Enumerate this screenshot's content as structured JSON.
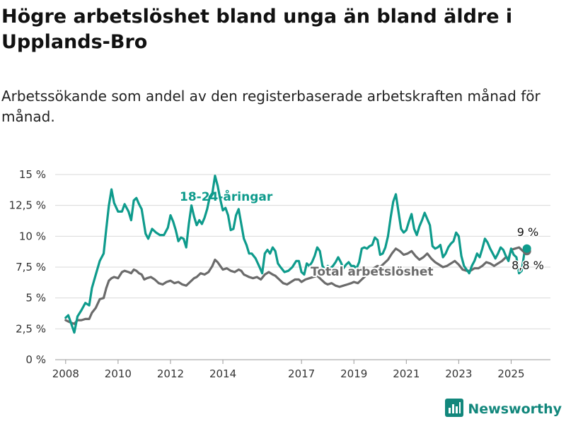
{
  "title": "Högre arbetslöshet bland unga än bland äldre i Upplands-Bro",
  "subtitle": "Arbetssökande som andel av den registerbaserade arbetskraften månad för månad.",
  "brand": {
    "name": "Newsworthy",
    "icon": "bar-chart-logo-icon"
  },
  "colors": {
    "young": "#0e9b8c",
    "total": "#6b6b6b",
    "grid": "#d9d9d9",
    "brand": "#12877c"
  },
  "chart_data": {
    "type": "line",
    "ylim": [
      0,
      15
    ],
    "y_ticks": [
      0,
      2.5,
      5,
      7.5,
      10,
      12.5,
      15
    ],
    "y_tick_labels": [
      "0 %",
      "2,5 %",
      "5 %",
      "7,5 %",
      "10 %",
      "12,5 %",
      "15 %"
    ],
    "xlim": [
      2007.6,
      2026.5
    ],
    "x_ticks": [
      2008,
      2010,
      2012,
      2014,
      2017,
      2019,
      2021,
      2023,
      2025
    ],
    "x_tick_labels": [
      "2008",
      "2010",
      "2012",
      "2014",
      "2017",
      "2019",
      "2021",
      "2023",
      "2025"
    ],
    "grid": "horizontal",
    "series": [
      {
        "name": "18-24-åringar",
        "color": "#0e9b8c",
        "end_label": "9 %",
        "points": [
          [
            2008.0,
            3.4
          ],
          [
            2008.1,
            3.6
          ],
          [
            2008.2,
            3.0
          ],
          [
            2008.33,
            2.2
          ],
          [
            2008.45,
            3.5
          ],
          [
            2008.6,
            4.0
          ],
          [
            2008.75,
            4.6
          ],
          [
            2008.9,
            4.4
          ],
          [
            2009.0,
            5.8
          ],
          [
            2009.15,
            6.9
          ],
          [
            2009.3,
            8.0
          ],
          [
            2009.45,
            8.6
          ],
          [
            2009.55,
            10.6
          ],
          [
            2009.65,
            12.5
          ],
          [
            2009.75,
            13.8
          ],
          [
            2009.85,
            12.7
          ],
          [
            2010.0,
            12.0
          ],
          [
            2010.15,
            12.0
          ],
          [
            2010.25,
            12.6
          ],
          [
            2010.4,
            12.0
          ],
          [
            2010.5,
            11.3
          ],
          [
            2010.6,
            12.9
          ],
          [
            2010.7,
            13.1
          ],
          [
            2010.8,
            12.6
          ],
          [
            2010.9,
            12.2
          ],
          [
            2011.05,
            10.2
          ],
          [
            2011.15,
            9.8
          ],
          [
            2011.3,
            10.6
          ],
          [
            2011.45,
            10.3
          ],
          [
            2011.6,
            10.1
          ],
          [
            2011.75,
            10.1
          ],
          [
            2011.9,
            10.7
          ],
          [
            2012.0,
            11.7
          ],
          [
            2012.1,
            11.2
          ],
          [
            2012.2,
            10.5
          ],
          [
            2012.3,
            9.6
          ],
          [
            2012.4,
            9.9
          ],
          [
            2012.5,
            9.8
          ],
          [
            2012.6,
            9.1
          ],
          [
            2012.7,
            11.0
          ],
          [
            2012.8,
            12.5
          ],
          [
            2012.9,
            11.6
          ],
          [
            2013.0,
            10.9
          ],
          [
            2013.1,
            11.3
          ],
          [
            2013.2,
            11.0
          ],
          [
            2013.3,
            11.5
          ],
          [
            2013.4,
            12.2
          ],
          [
            2013.5,
            13.2
          ],
          [
            2013.6,
            13.5
          ],
          [
            2013.7,
            14.9
          ],
          [
            2013.8,
            14.1
          ],
          [
            2013.9,
            13.0
          ],
          [
            2014.0,
            12.1
          ],
          [
            2014.1,
            12.3
          ],
          [
            2014.2,
            11.7
          ],
          [
            2014.3,
            10.5
          ],
          [
            2014.4,
            10.6
          ],
          [
            2014.5,
            11.7
          ],
          [
            2014.6,
            12.2
          ],
          [
            2014.7,
            11.0
          ],
          [
            2014.8,
            9.8
          ],
          [
            2014.9,
            9.3
          ],
          [
            2015.0,
            8.6
          ],
          [
            2015.1,
            8.6
          ],
          [
            2015.25,
            8.2
          ],
          [
            2015.4,
            7.5
          ],
          [
            2015.5,
            7.0
          ],
          [
            2015.6,
            8.6
          ],
          [
            2015.7,
            8.9
          ],
          [
            2015.8,
            8.6
          ],
          [
            2015.9,
            9.1
          ],
          [
            2016.0,
            8.8
          ],
          [
            2016.1,
            7.8
          ],
          [
            2016.2,
            7.5
          ],
          [
            2016.35,
            7.1
          ],
          [
            2016.5,
            7.2
          ],
          [
            2016.65,
            7.5
          ],
          [
            2016.8,
            8.0
          ],
          [
            2016.9,
            8.0
          ],
          [
            2017.0,
            7.1
          ],
          [
            2017.1,
            6.9
          ],
          [
            2017.2,
            7.8
          ],
          [
            2017.3,
            7.6
          ],
          [
            2017.4,
            7.9
          ],
          [
            2017.5,
            8.4
          ],
          [
            2017.6,
            9.1
          ],
          [
            2017.7,
            8.8
          ],
          [
            2017.8,
            7.6
          ],
          [
            2017.9,
            7.3
          ],
          [
            2018.0,
            7.6
          ],
          [
            2018.1,
            7.4
          ],
          [
            2018.2,
            7.6
          ],
          [
            2018.3,
            7.9
          ],
          [
            2018.4,
            8.3
          ],
          [
            2018.5,
            7.9
          ],
          [
            2018.6,
            7.4
          ],
          [
            2018.7,
            7.7
          ],
          [
            2018.8,
            7.9
          ],
          [
            2018.9,
            7.6
          ],
          [
            2019.0,
            7.6
          ],
          [
            2019.1,
            7.4
          ],
          [
            2019.2,
            7.9
          ],
          [
            2019.3,
            9.0
          ],
          [
            2019.4,
            9.1
          ],
          [
            2019.5,
            9.0
          ],
          [
            2019.6,
            9.2
          ],
          [
            2019.7,
            9.3
          ],
          [
            2019.8,
            9.9
          ],
          [
            2019.9,
            9.7
          ],
          [
            2020.0,
            8.5
          ],
          [
            2020.1,
            8.6
          ],
          [
            2020.2,
            9.1
          ],
          [
            2020.3,
            10.0
          ],
          [
            2020.4,
            11.5
          ],
          [
            2020.5,
            12.8
          ],
          [
            2020.6,
            13.4
          ],
          [
            2020.7,
            12.0
          ],
          [
            2020.8,
            10.6
          ],
          [
            2020.9,
            10.3
          ],
          [
            2021.0,
            10.5
          ],
          [
            2021.1,
            11.2
          ],
          [
            2021.2,
            11.8
          ],
          [
            2021.3,
            10.6
          ],
          [
            2021.4,
            10.1
          ],
          [
            2021.5,
            10.8
          ],
          [
            2021.6,
            11.3
          ],
          [
            2021.7,
            11.9
          ],
          [
            2021.8,
            11.4
          ],
          [
            2021.9,
            10.9
          ],
          [
            2022.0,
            9.2
          ],
          [
            2022.1,
            9.0
          ],
          [
            2022.2,
            9.1
          ],
          [
            2022.3,
            9.3
          ],
          [
            2022.4,
            8.3
          ],
          [
            2022.5,
            8.6
          ],
          [
            2022.6,
            9.1
          ],
          [
            2022.7,
            9.4
          ],
          [
            2022.8,
            9.6
          ],
          [
            2022.9,
            10.3
          ],
          [
            2023.0,
            10.0
          ],
          [
            2023.1,
            8.4
          ],
          [
            2023.2,
            7.6
          ],
          [
            2023.3,
            7.3
          ],
          [
            2023.4,
            7.0
          ],
          [
            2023.5,
            7.6
          ],
          [
            2023.6,
            8.0
          ],
          [
            2023.7,
            8.6
          ],
          [
            2023.8,
            8.3
          ],
          [
            2023.9,
            9.0
          ],
          [
            2024.0,
            9.8
          ],
          [
            2024.1,
            9.5
          ],
          [
            2024.2,
            9.0
          ],
          [
            2024.3,
            8.6
          ],
          [
            2024.4,
            8.2
          ],
          [
            2024.5,
            8.6
          ],
          [
            2024.6,
            9.1
          ],
          [
            2024.7,
            8.9
          ],
          [
            2024.8,
            8.4
          ],
          [
            2024.9,
            8.0
          ],
          [
            2025.0,
            9.0
          ],
          [
            2025.1,
            8.5
          ],
          [
            2025.2,
            8.3
          ],
          [
            2025.3,
            7.0
          ],
          [
            2025.4,
            7.2
          ],
          [
            2025.5,
            8.6
          ],
          [
            2025.6,
            9.0
          ]
        ]
      },
      {
        "name": "Total arbetslöshet",
        "color": "#6b6b6b",
        "end_label": "8,8 %",
        "points": [
          [
            2008.0,
            3.2
          ],
          [
            2008.1,
            3.1
          ],
          [
            2008.2,
            3.0
          ],
          [
            2008.33,
            2.9
          ],
          [
            2008.45,
            3.2
          ],
          [
            2008.6,
            3.2
          ],
          [
            2008.75,
            3.3
          ],
          [
            2008.9,
            3.3
          ],
          [
            2009.0,
            3.8
          ],
          [
            2009.15,
            4.2
          ],
          [
            2009.3,
            4.9
          ],
          [
            2009.45,
            5.0
          ],
          [
            2009.55,
            5.8
          ],
          [
            2009.65,
            6.4
          ],
          [
            2009.75,
            6.6
          ],
          [
            2009.85,
            6.7
          ],
          [
            2010.0,
            6.6
          ],
          [
            2010.15,
            7.1
          ],
          [
            2010.25,
            7.2
          ],
          [
            2010.4,
            7.1
          ],
          [
            2010.5,
            7.0
          ],
          [
            2010.6,
            7.3
          ],
          [
            2010.7,
            7.2
          ],
          [
            2010.8,
            7.0
          ],
          [
            2010.9,
            6.9
          ],
          [
            2011.0,
            6.5
          ],
          [
            2011.1,
            6.6
          ],
          [
            2011.25,
            6.7
          ],
          [
            2011.4,
            6.5
          ],
          [
            2011.55,
            6.2
          ],
          [
            2011.7,
            6.1
          ],
          [
            2011.85,
            6.3
          ],
          [
            2012.0,
            6.4
          ],
          [
            2012.15,
            6.2
          ],
          [
            2012.3,
            6.3
          ],
          [
            2012.45,
            6.1
          ],
          [
            2012.6,
            6.0
          ],
          [
            2012.75,
            6.3
          ],
          [
            2012.9,
            6.6
          ],
          [
            2013.0,
            6.7
          ],
          [
            2013.15,
            7.0
          ],
          [
            2013.3,
            6.9
          ],
          [
            2013.45,
            7.1
          ],
          [
            2013.6,
            7.6
          ],
          [
            2013.7,
            8.1
          ],
          [
            2013.8,
            7.9
          ],
          [
            2013.9,
            7.6
          ],
          [
            2014.0,
            7.3
          ],
          [
            2014.15,
            7.4
          ],
          [
            2014.3,
            7.2
          ],
          [
            2014.45,
            7.1
          ],
          [
            2014.6,
            7.3
          ],
          [
            2014.7,
            7.2
          ],
          [
            2014.8,
            6.9
          ],
          [
            2014.9,
            6.8
          ],
          [
            2015.0,
            6.7
          ],
          [
            2015.15,
            6.6
          ],
          [
            2015.3,
            6.7
          ],
          [
            2015.45,
            6.5
          ],
          [
            2015.6,
            6.9
          ],
          [
            2015.75,
            7.1
          ],
          [
            2015.9,
            6.9
          ],
          [
            2016.0,
            6.8
          ],
          [
            2016.15,
            6.5
          ],
          [
            2016.3,
            6.2
          ],
          [
            2016.45,
            6.1
          ],
          [
            2016.6,
            6.3
          ],
          [
            2016.75,
            6.5
          ],
          [
            2016.9,
            6.5
          ],
          [
            2017.0,
            6.3
          ],
          [
            2017.15,
            6.5
          ],
          [
            2017.3,
            6.6
          ],
          [
            2017.45,
            6.7
          ],
          [
            2017.6,
            6.8
          ],
          [
            2017.75,
            6.5
          ],
          [
            2017.9,
            6.2
          ],
          [
            2018.0,
            6.1
          ],
          [
            2018.15,
            6.2
          ],
          [
            2018.3,
            6.0
          ],
          [
            2018.45,
            5.9
          ],
          [
            2018.6,
            6.0
          ],
          [
            2018.75,
            6.1
          ],
          [
            2018.9,
            6.2
          ],
          [
            2019.0,
            6.3
          ],
          [
            2019.15,
            6.2
          ],
          [
            2019.3,
            6.5
          ],
          [
            2019.45,
            6.8
          ],
          [
            2019.6,
            7.0
          ],
          [
            2019.75,
            7.4
          ],
          [
            2019.9,
            7.6
          ],
          [
            2020.0,
            7.5
          ],
          [
            2020.15,
            7.8
          ],
          [
            2020.3,
            8.1
          ],
          [
            2020.45,
            8.6
          ],
          [
            2020.6,
            9.0
          ],
          [
            2020.75,
            8.8
          ],
          [
            2020.9,
            8.5
          ],
          [
            2021.05,
            8.6
          ],
          [
            2021.2,
            8.8
          ],
          [
            2021.35,
            8.4
          ],
          [
            2021.5,
            8.1
          ],
          [
            2021.65,
            8.3
          ],
          [
            2021.8,
            8.6
          ],
          [
            2021.95,
            8.2
          ],
          [
            2022.1,
            7.9
          ],
          [
            2022.25,
            7.7
          ],
          [
            2022.4,
            7.5
          ],
          [
            2022.55,
            7.6
          ],
          [
            2022.7,
            7.8
          ],
          [
            2022.85,
            8.0
          ],
          [
            2023.0,
            7.7
          ],
          [
            2023.15,
            7.3
          ],
          [
            2023.3,
            7.2
          ],
          [
            2023.45,
            7.2
          ],
          [
            2023.6,
            7.4
          ],
          [
            2023.75,
            7.4
          ],
          [
            2023.9,
            7.6
          ],
          [
            2024.05,
            7.9
          ],
          [
            2024.2,
            7.8
          ],
          [
            2024.35,
            7.6
          ],
          [
            2024.5,
            7.8
          ],
          [
            2024.65,
            8.0
          ],
          [
            2024.8,
            8.3
          ],
          [
            2024.9,
            8.2
          ],
          [
            2025.0,
            8.9
          ],
          [
            2025.15,
            9.0
          ],
          [
            2025.3,
            9.1
          ],
          [
            2025.45,
            8.8
          ],
          [
            2025.6,
            8.8
          ]
        ]
      }
    ]
  }
}
